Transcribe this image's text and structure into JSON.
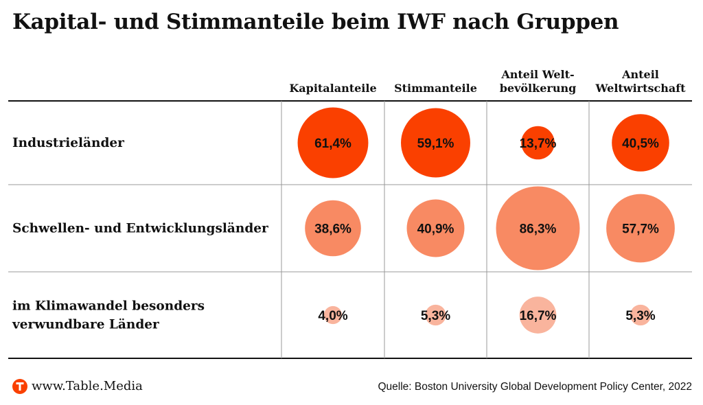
{
  "title": "Kapital- und Stimmanteile beim IWF nach Gruppen",
  "footer": {
    "site": "www.Table.Media",
    "source": "Quelle: Boston University Global Development Policy Center, 2022",
    "logo_icon": "table-media-t-logo"
  },
  "colors": {
    "row_1": "#fa4000",
    "row_2": "#f88a63",
    "row_3": "#f9b49d",
    "brand": "#fa4000",
    "grid": "#999999",
    "rule": "#111111"
  },
  "chart_data": {
    "type": "bubble-table",
    "title": "Kapital- und Stimmanteile beim IWF nach Gruppen",
    "columns": [
      {
        "label_lines": [
          "Kapitalanteile"
        ]
      },
      {
        "label_lines": [
          "Stimmanteile"
        ]
      },
      {
        "label_lines": [
          "Anteil Welt-",
          "bevölkerung"
        ]
      },
      {
        "label_lines": [
          "Anteil",
          "Weltwirtschaft"
        ]
      }
    ],
    "rows": [
      {
        "label_lines": [
          "Industrieländer"
        ],
        "values": [
          61.4,
          59.1,
          13.7,
          40.5
        ],
        "labels": [
          "61,4%",
          "59,1%",
          "13,7%",
          "40,5%"
        ]
      },
      {
        "label_lines": [
          "Schwellen- und Entwicklungsländer"
        ],
        "values": [
          38.6,
          40.9,
          86.3,
          57.7
        ],
        "labels": [
          "38,6%",
          "40,9%",
          "86,3%",
          "57,7%"
        ]
      },
      {
        "label_lines": [
          "im Klimawandel besonders",
          "verwundbare Länder"
        ],
        "values": [
          4.0,
          5.3,
          16.7,
          5.3
        ],
        "labels": [
          "4,0%",
          "5,3%",
          "16,7%",
          "5,3%"
        ]
      }
    ],
    "unit": "%",
    "bubble_area_proportional": true
  }
}
